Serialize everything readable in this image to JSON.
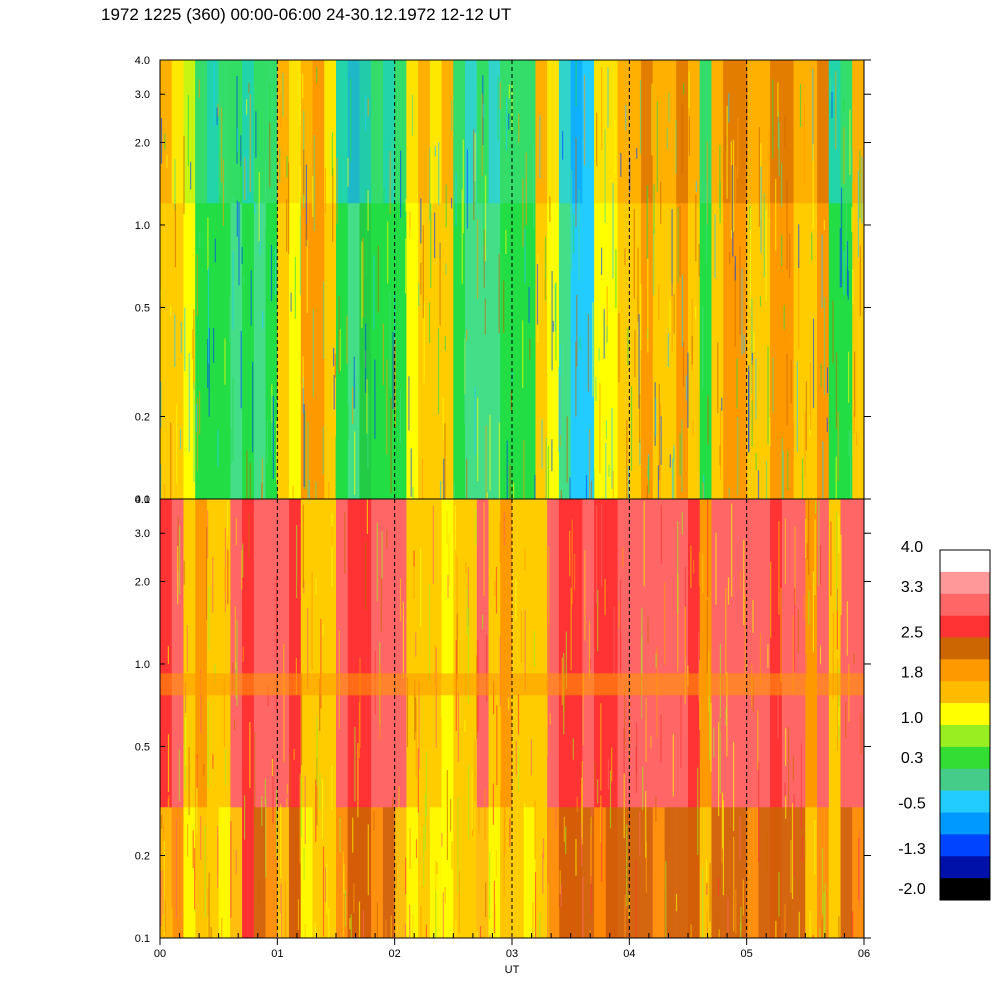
{
  "header": {
    "title": "1972 1225 (360) 00:00-06:00 24-30.12.1972  12-12 UT"
  },
  "chart_data": [
    {
      "type": "heatmap",
      "panel": "top",
      "x_range": [
        "00",
        "06"
      ],
      "y_scale": "log",
      "ylim": [
        0.1,
        4.0
      ],
      "y_ticks": [
        "0.1",
        "0.2",
        "0.5",
        "1.0",
        "2.0",
        "3.0",
        "4.0"
      ],
      "y_tick_values": [
        0.1,
        0.2,
        0.5,
        1.0,
        2.0,
        3.0,
        4.0
      ],
      "dashed_hour_markers": [
        1,
        2,
        3,
        4,
        5
      ],
      "column_colors": [
        "#ffcc00",
        "#ffcc00",
        "#ffff00",
        "#22dd44",
        "#22dd44",
        "#22dd44",
        "#44dd88",
        "#22dd44",
        "#44dd88",
        "#22dd44",
        "#ffcc00",
        "#ffff00",
        "#ff9900",
        "#ff9900",
        "#ffcc00",
        "#22dd44",
        "#44dd88",
        "#22cc44",
        "#22dd44",
        "#22dd44",
        "#22dd44",
        "#ffff00",
        "#ffcc00",
        "#ffcc00",
        "#ffcc00",
        "#22dd44",
        "#44dd88",
        "#44dd88",
        "#44dd88",
        "#22dd44",
        "#22dd44",
        "#22dd44",
        "#ffcc00",
        "#ffff00",
        "#44dd88",
        "#22ccff",
        "#22ccff",
        "#ffff00",
        "#ffff00",
        "#ffcc00",
        "#ffcc00",
        "#ff9900",
        "#ffcc00",
        "#ffcc00",
        "#ff9900",
        "#ffcc00",
        "#22dd44",
        "#ffcc00",
        "#ff9900",
        "#ff9900",
        "#ffcc00",
        "#ffcc00",
        "#ff9900",
        "#ff9900",
        "#ffcc00",
        "#ffcc00",
        "#ff9900",
        "#22dd44",
        "#22dd44",
        "#ffcc00"
      ],
      "column_colors_alt": [
        "#ff9900",
        "#ffff00",
        "#99ee22",
        "#44dd88",
        "#22ccff",
        "#44dd88",
        "#22dd44",
        "#22ccff",
        "#22dd44",
        "#44dd88",
        "#ff9900",
        "#ffcc00",
        "#ffcc00",
        "#ff9900",
        "#ffff00",
        "#22ccff",
        "#0099ff",
        "#22ccff",
        "#44dd88",
        "#22ccff",
        "#44dd88",
        "#ffcc00",
        "#ff9900",
        "#ffff00",
        "#ff9900",
        "#44dd88",
        "#22ccff",
        "#22dd44",
        "#22ccff",
        "#44dd88",
        "#44dd88",
        "#44dd88",
        "#ff9900",
        "#ffcc00",
        "#22ccff",
        "#0099ff",
        "#22ccff",
        "#ffcc00",
        "#ffcc00",
        "#ff9900",
        "#ff9900",
        "#cc6600",
        "#ff9900",
        "#ff9900",
        "#cc6600",
        "#ff9900",
        "#44dd88",
        "#ff9900",
        "#cc6600",
        "#cc6600",
        "#ff9900",
        "#ff9900",
        "#cc6600",
        "#cc6600",
        "#ff9900",
        "#ff9900",
        "#cc6600",
        "#22ccff",
        "#44dd88",
        "#ff9900"
      ]
    },
    {
      "type": "heatmap",
      "panel": "bottom",
      "x_range": [
        "00",
        "06"
      ],
      "y_scale": "log",
      "ylim": [
        0.1,
        4.0
      ],
      "y_ticks": [
        "0.1",
        "0.2",
        "0.5",
        "1.0",
        "2.0",
        "3.0",
        "4.0"
      ],
      "y_tick_values": [
        0.1,
        0.2,
        0.5,
        1.0,
        2.0,
        3.0,
        4.0
      ],
      "dashed_hour_markers": [
        1,
        2,
        3,
        4,
        5
      ],
      "band_at_y": 0.85,
      "band_color": "#ff9900",
      "column_colors": [
        "#ff3333",
        "#ff6666",
        "#ffcc00",
        "#ff9900",
        "#ffcc00",
        "#ffcc00",
        "#ff6666",
        "#ff3333",
        "#ff6666",
        "#ff6666",
        "#ff6666",
        "#ff3333",
        "#ffcc00",
        "#ffcc00",
        "#ffcc00",
        "#ff6666",
        "#ff3333",
        "#ff3333",
        "#ff6666",
        "#ff6666",
        "#ff6666",
        "#ffcc00",
        "#ffcc00",
        "#ffcc00",
        "#ffff00",
        "#ffcc00",
        "#ffcc00",
        "#ff6666",
        "#ffcc00",
        "#ff9900",
        "#ffcc00",
        "#ffcc00",
        "#ffcc00",
        "#ff6666",
        "#ff3333",
        "#ff3333",
        "#ff6666",
        "#ff3333",
        "#ff3333",
        "#ff6666",
        "#ff6666",
        "#ff6666",
        "#ff6666",
        "#ff6666",
        "#ff6666",
        "#ff3333",
        "#ff9900",
        "#ff6666",
        "#ff6666",
        "#ff6666",
        "#ff6666",
        "#ff6666",
        "#ff3333",
        "#ff6666",
        "#ff6666",
        "#ff9900",
        "#ff6666",
        "#ffcc00",
        "#ff6666",
        "#ff6666"
      ],
      "column_colors_low": [
        "#ffcc00",
        "#ff9900",
        "#ffff00",
        "#ffcc00",
        "#ffcc00",
        "#ffff00",
        "#ffcc00",
        "#ff3333",
        "#cc6600",
        "#ff9900",
        "#ffcc00",
        "#cc6600",
        "#ffff00",
        "#ffcc00",
        "#ffcc00",
        "#ff9900",
        "#cc6600",
        "#cc6600",
        "#ff9900",
        "#cc6600",
        "#ffcc00",
        "#ffff00",
        "#ffcc00",
        "#ffff00",
        "#ffff00",
        "#ffcc00",
        "#ffcc00",
        "#ffcc00",
        "#ffff00",
        "#ffcc00",
        "#ffcc00",
        "#ffff00",
        "#ffcc00",
        "#ff9900",
        "#cc6600",
        "#cc6600",
        "#cc6600",
        "#ff9900",
        "#cc6600",
        "#cc6600",
        "#cc6600",
        "#cc6600",
        "#ff9900",
        "#cc6600",
        "#cc6600",
        "#cc6600",
        "#ffcc00",
        "#cc6600",
        "#cc6600",
        "#cc6600",
        "#ff9900",
        "#cc6600",
        "#cc6600",
        "#cc6600",
        "#cc6600",
        "#ffcc00",
        "#ff9900",
        "#ffcc00",
        "#cc6600",
        "#ff9900"
      ]
    }
  ],
  "x_axis": {
    "ticks": [
      "00",
      "01",
      "02",
      "03",
      "04",
      "05",
      "06"
    ],
    "xlabel": "UT"
  },
  "colorbar": {
    "labels": [
      "4.0",
      "3.3",
      "2.5",
      "1.8",
      "1.0",
      "0.3",
      "-0.5",
      "-1.3",
      "-2.0"
    ],
    "label_values": [
      4.0,
      3.3,
      2.5,
      1.8,
      1.0,
      0.3,
      -0.5,
      -1.3,
      -2.0
    ],
    "colors_top_to_bottom": [
      "#ffffff",
      "#ff9999",
      "#ff6666",
      "#ff3333",
      "#cc6600",
      "#ff9900",
      "#ffbb00",
      "#ffff00",
      "#99ee22",
      "#33dd33",
      "#44cc88",
      "#22ccff",
      "#0099ff",
      "#0044ff",
      "#0011aa",
      "#000000"
    ]
  }
}
